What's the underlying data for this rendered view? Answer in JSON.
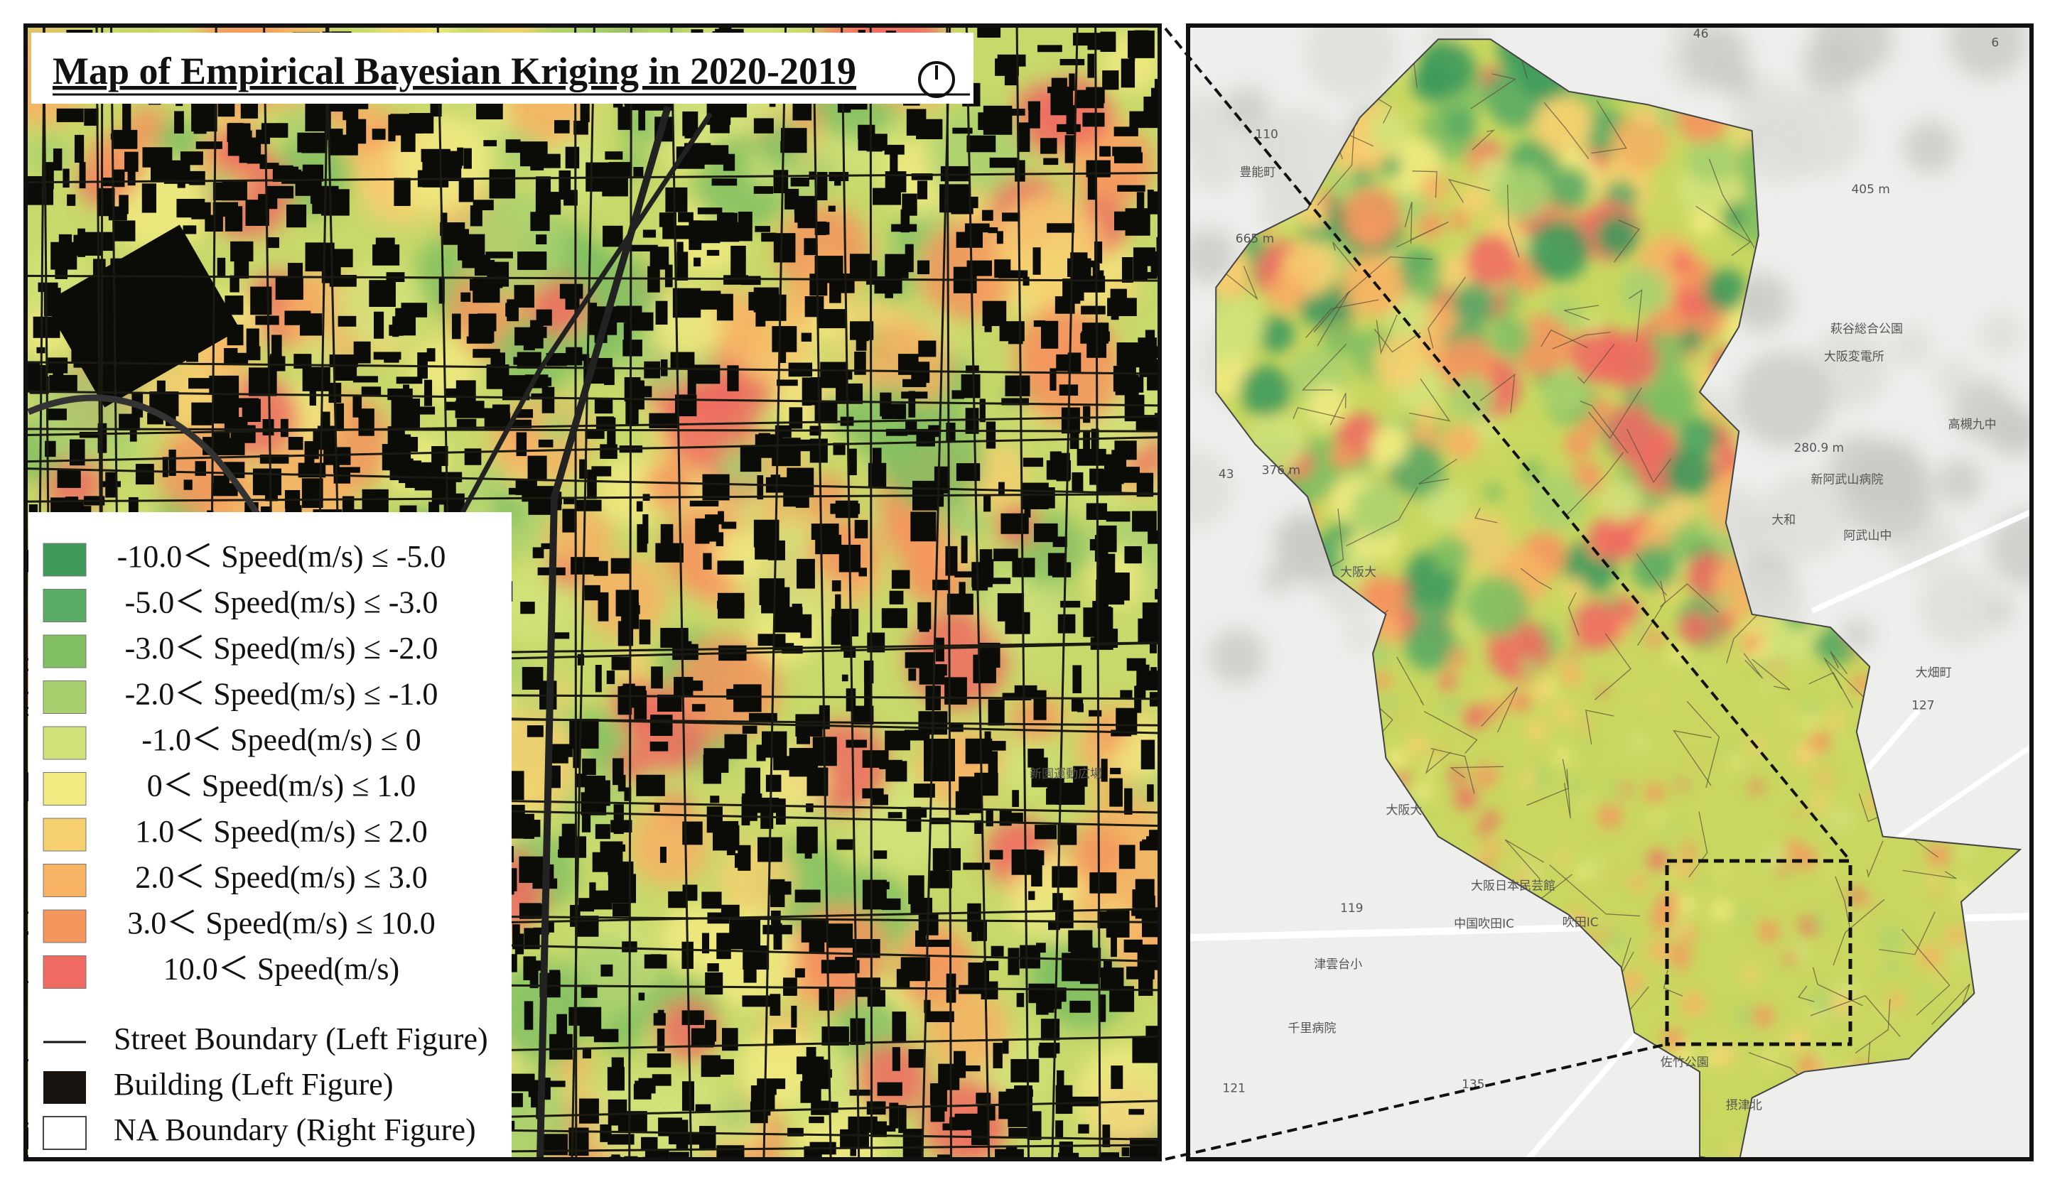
{
  "title": "Map of Empirical Bayesian Kriging in 2020-2019",
  "legend": {
    "items": [
      {
        "label": "-10.0＜ Speed(m/s) ≤ -5.0",
        "color": "#3f9a5c"
      },
      {
        "label": "-5.0＜ Speed(m/s) ≤ -3.0",
        "color": "#5aab64"
      },
      {
        "label": "-3.0＜ Speed(m/s) ≤ -2.0",
        "color": "#82bf62"
      },
      {
        "label": "-2.0＜ Speed(m/s) ≤ -1.0",
        "color": "#a9d06e"
      },
      {
        "label": "-1.0＜ Speed(m/s) ≤ 0",
        "color": "#d2e27a"
      },
      {
        "label": "0＜ Speed(m/s) ≤ 1.0",
        "color": "#f0ea80"
      },
      {
        "label": "1.0＜ Speed(m/s) ≤ 2.0",
        "color": "#f6cf70"
      },
      {
        "label": "2.0＜ Speed(m/s) ≤ 3.0",
        "color": "#f7b264"
      },
      {
        "label": "3.0＜ Speed(m/s) ≤ 10.0",
        "color": "#f5955e"
      },
      {
        "label": "10.0＜ Speed(m/s)",
        "color": "#ef6b62"
      }
    ],
    "street_boundary": "Street Boundary (Left Figure)",
    "building": "Building (Left Figure)",
    "na_boundary": "NA Boundary (Right Figure)"
  },
  "left_map": {
    "labels": [
      "新園運動広場"
    ]
  },
  "right_map": {
    "labels": [
      "豊能町",
      "665 m",
      "405 m",
      "376 m",
      "280.9 m",
      "萩谷総合公園",
      "大阪変電所",
      "高槻九中",
      "新阿武山病院",
      "大和",
      "阿武山中",
      "大阪大",
      "大畑町",
      "大阪大",
      "大阪日本民芸館",
      "中国吹田IC",
      "吹田IC",
      "津雲台小",
      "千里病院",
      "佐竹公園",
      "摂津北",
      "110",
      "43",
      "119",
      "135",
      "121",
      "127",
      "46",
      "6"
    ]
  }
}
